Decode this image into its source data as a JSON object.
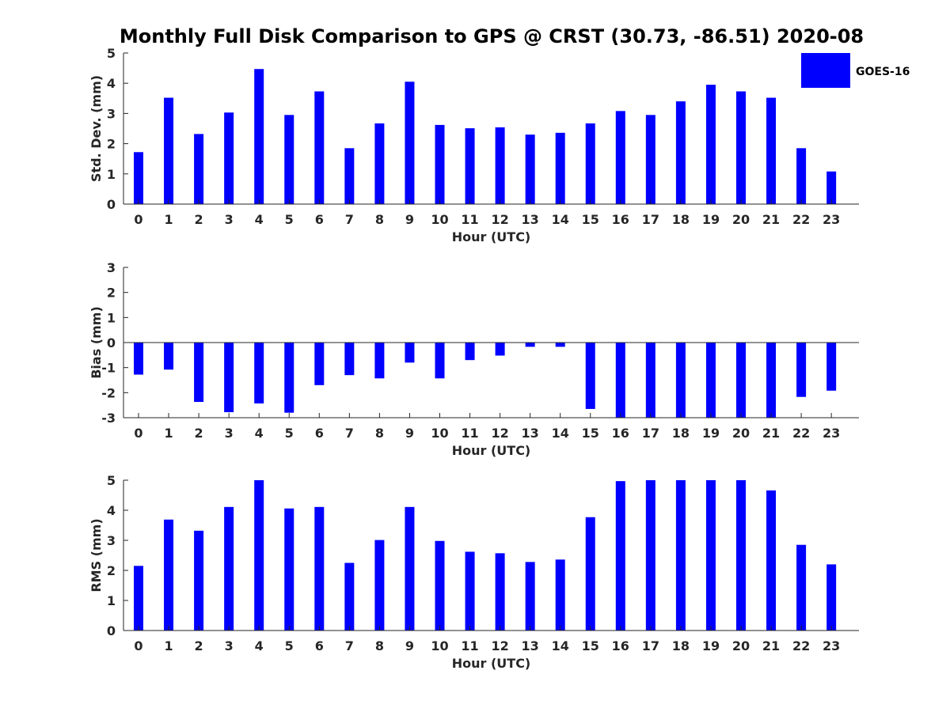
{
  "title": "Monthly Full Disk Comparison to GPS @ CRST (30.73, -86.51) 2020-08",
  "legend": {
    "label": "GOES-16",
    "color": "#0000ff",
    "placement": "top-right"
  },
  "chart_data": [
    {
      "type": "bar",
      "xlabel": "Hour (UTC)",
      "ylabel": "Std. Dev. (mm)",
      "ylim": [
        0,
        5
      ],
      "yticks": [
        0,
        1,
        2,
        3,
        4,
        5
      ],
      "categories": [
        "0",
        "1",
        "2",
        "3",
        "4",
        "5",
        "6",
        "7",
        "8",
        "9",
        "10",
        "11",
        "12",
        "13",
        "14",
        "15",
        "16",
        "17",
        "18",
        "19",
        "20",
        "21",
        "22",
        "23"
      ],
      "series": [
        {
          "name": "GOES-16",
          "values": [
            1.72,
            3.52,
            2.32,
            3.03,
            4.47,
            2.95,
            3.73,
            1.85,
            2.67,
            4.05,
            2.62,
            2.51,
            2.54,
            2.3,
            2.36,
            2.67,
            3.08,
            2.95,
            3.4,
            3.95,
            3.73,
            3.52,
            1.85,
            1.08
          ]
        }
      ]
    },
    {
      "type": "bar",
      "xlabel": "Hour (UTC)",
      "ylabel": "Bias (mm)",
      "ylim": [
        -3,
        3
      ],
      "yticks": [
        -3,
        -2,
        -1,
        0,
        1,
        2,
        3
      ],
      "categories": [
        "0",
        "1",
        "2",
        "3",
        "4",
        "5",
        "6",
        "7",
        "8",
        "9",
        "10",
        "11",
        "12",
        "13",
        "14",
        "15",
        "16",
        "17",
        "18",
        "19",
        "20",
        "21",
        "22",
        "23"
      ],
      "series": [
        {
          "name": "GOES-16",
          "values": [
            -1.28,
            -1.08,
            -2.37,
            -2.78,
            -2.43,
            -2.8,
            -1.7,
            -1.3,
            -1.43,
            -0.8,
            -1.43,
            -0.7,
            -0.52,
            -0.17,
            -0.17,
            -2.65,
            -3.0,
            -3.0,
            -3.0,
            -3.0,
            -3.0,
            -3.0,
            -2.17,
            -1.92
          ]
        }
      ]
    },
    {
      "type": "bar",
      "xlabel": "Hour (UTC)",
      "ylabel": "RMS (mm)",
      "ylim": [
        0,
        5
      ],
      "yticks": [
        0,
        1,
        2,
        3,
        4,
        5
      ],
      "categories": [
        "0",
        "1",
        "2",
        "3",
        "4",
        "5",
        "6",
        "7",
        "8",
        "9",
        "10",
        "11",
        "12",
        "13",
        "14",
        "15",
        "16",
        "17",
        "18",
        "19",
        "20",
        "21",
        "22",
        "23"
      ],
      "series": [
        {
          "name": "GOES-16",
          "values": [
            2.15,
            3.69,
            3.32,
            4.11,
            5.0,
            4.06,
            4.11,
            2.25,
            3.01,
            4.11,
            2.98,
            2.62,
            2.57,
            2.28,
            2.36,
            3.77,
            4.97,
            5.0,
            5.0,
            5.0,
            5.0,
            4.66,
            2.85,
            2.2
          ]
        }
      ]
    }
  ]
}
